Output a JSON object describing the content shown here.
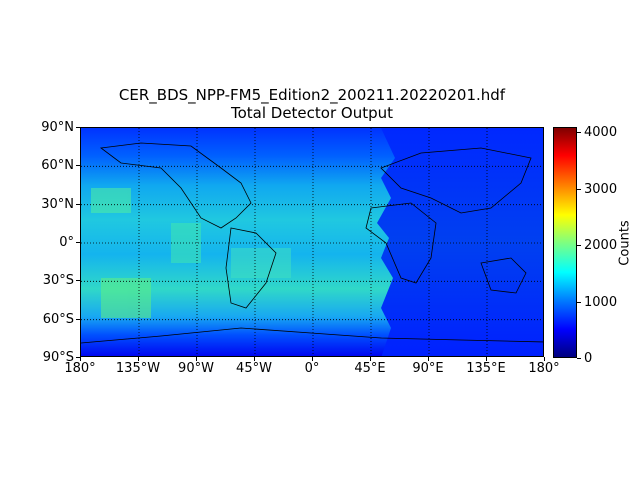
{
  "title": "CER_BDS_NPP-FM5_Edition2_200211.20220201.hdf",
  "subtitle": "Total Detector Output",
  "map": {
    "projection": "plate-carree",
    "lon_range": [
      -180,
      180
    ],
    "lat_range": [
      -90,
      90
    ],
    "gridlines": "dotted",
    "lat_ticks": [
      {
        "value": 90,
        "label": "90°N"
      },
      {
        "value": 60,
        "label": "60°N"
      },
      {
        "value": 30,
        "label": "30°N"
      },
      {
        "value": 0,
        "label": "0°"
      },
      {
        "value": -30,
        "label": "30°S"
      },
      {
        "value": -60,
        "label": "60°S"
      },
      {
        "value": -90,
        "label": "90°S"
      }
    ],
    "lon_ticks": [
      {
        "value": -180,
        "label": "180°"
      },
      {
        "value": -135,
        "label": "135°W"
      },
      {
        "value": -90,
        "label": "90°W"
      },
      {
        "value": -45,
        "label": "45°W"
      },
      {
        "value": 0,
        "label": "0°"
      },
      {
        "value": 45,
        "label": "45°E"
      },
      {
        "value": 90,
        "label": "90°E"
      },
      {
        "value": 135,
        "label": "135°E"
      },
      {
        "value": 180,
        "label": "180°"
      }
    ],
    "field_description": "western half (180°W–20°E) ~1200–2200 counts, eastern half ~400–900 counts"
  },
  "colorbar": {
    "colormap": "jet",
    "label": "Counts",
    "range": [
      0,
      4095
    ],
    "ticks": [
      {
        "value": 0,
        "label": "0"
      },
      {
        "value": 1000,
        "label": "1000"
      },
      {
        "value": 2000,
        "label": "2000"
      },
      {
        "value": 3000,
        "label": "3000"
      },
      {
        "value": 4000,
        "label": "4000"
      }
    ]
  }
}
